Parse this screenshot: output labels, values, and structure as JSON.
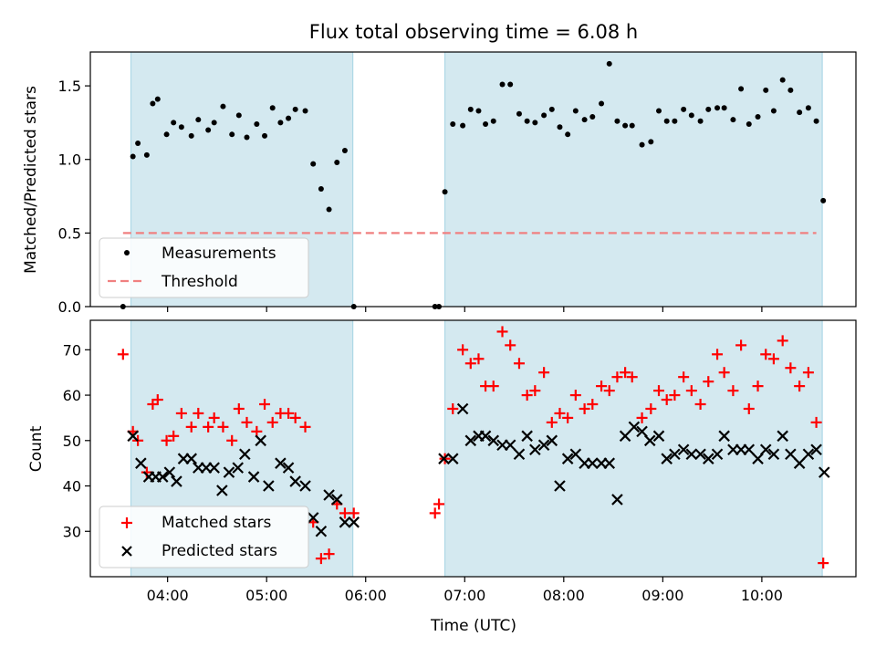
{
  "figure": {
    "title": "Flux total observing time = 6.08 h",
    "xlabel": "Time (UTC)",
    "x_ticks": [
      "04:00",
      "05:00",
      "06:00",
      "07:00",
      "08:00",
      "09:00",
      "10:00"
    ],
    "x_tick_values": [
      4.0,
      5.0,
      6.0,
      7.0,
      8.0,
      9.0,
      10.0
    ],
    "xlim": [
      3.22,
      10.95
    ]
  },
  "chart_data": [
    {
      "type": "scatter",
      "panel": "top",
      "ylabel": "Matched/Predicted stars",
      "ylim": [
        0.0,
        1.73
      ],
      "yticks": [
        0.0,
        0.5,
        1.0,
        1.5
      ],
      "ytick_labels": [
        "0.0",
        "0.5",
        "1.0",
        "1.5"
      ],
      "shaded_intervals": [
        [
          3.63,
          5.87
        ],
        [
          6.8,
          10.61
        ]
      ],
      "shade_color": "#d4e9f0",
      "legend": "lower-left",
      "threshold": {
        "name": "Threshold",
        "value": 0.5,
        "x_range": [
          3.55,
          10.55
        ],
        "color": "#f08080",
        "style": "dashed"
      },
      "series": [
        {
          "name": "Measurements",
          "marker": "dot",
          "color": "#000000",
          "x": [
            3.55,
            3.65,
            3.7,
            3.79,
            3.85,
            3.9,
            3.99,
            4.06,
            4.14,
            4.24,
            4.31,
            4.41,
            4.47,
            4.56,
            4.65,
            4.72,
            4.8,
            4.9,
            4.98,
            5.06,
            5.14,
            5.22,
            5.29,
            5.39,
            5.47,
            5.55,
            5.63,
            5.71,
            5.79,
            5.88,
            6.7,
            6.74,
            6.8,
            6.88,
            6.98,
            7.06,
            7.14,
            7.21,
            7.29,
            7.38,
            7.46,
            7.55,
            7.63,
            7.71,
            7.8,
            7.88,
            7.96,
            8.04,
            8.12,
            8.21,
            8.29,
            8.38,
            8.46,
            8.54,
            8.62,
            8.69,
            8.79,
            8.88,
            8.96,
            9.04,
            9.12,
            9.21,
            9.29,
            9.38,
            9.46,
            9.55,
            9.62,
            9.71,
            9.79,
            9.87,
            9.96,
            10.04,
            10.12,
            10.21,
            10.29,
            10.38,
            10.47,
            10.55,
            10.62
          ],
          "y": [
            0.0,
            1.02,
            1.11,
            1.03,
            1.38,
            1.41,
            1.17,
            1.25,
            1.22,
            1.16,
            1.27,
            1.2,
            1.25,
            1.36,
            1.17,
            1.3,
            1.15,
            1.24,
            1.16,
            1.35,
            1.25,
            1.28,
            1.34,
            1.33,
            0.97,
            0.8,
            0.66,
            0.98,
            1.06,
            0.0,
            0.0,
            0.0,
            0.78,
            1.24,
            1.23,
            1.34,
            1.33,
            1.24,
            1.26,
            1.51,
            1.51,
            1.31,
            1.26,
            1.25,
            1.3,
            1.34,
            1.22,
            1.17,
            1.33,
            1.27,
            1.29,
            1.38,
            1.65,
            1.26,
            1.23,
            1.23,
            1.1,
            1.12,
            1.33,
            1.26,
            1.26,
            1.34,
            1.3,
            1.26,
            1.34,
            1.35,
            1.35,
            1.27,
            1.48,
            1.24,
            1.29,
            1.47,
            1.33,
            1.54,
            1.47,
            1.32,
            1.35,
            1.26,
            0.72
          ]
        }
      ]
    },
    {
      "type": "scatter",
      "panel": "bottom",
      "ylabel": "Count",
      "ylim": [
        20.0,
        76.5
      ],
      "yticks": [
        30,
        40,
        50,
        60,
        70
      ],
      "ytick_labels": [
        "30",
        "40",
        "50",
        "60",
        "70"
      ],
      "shaded_intervals": [
        [
          3.63,
          5.87
        ],
        [
          6.8,
          10.61
        ]
      ],
      "shade_color": "#d4e9f0",
      "legend": "lower-left",
      "series": [
        {
          "name": "Matched stars",
          "marker": "plus",
          "color": "#ff0000",
          "x": [
            3.55,
            3.65,
            3.7,
            3.79,
            3.85,
            3.9,
            3.99,
            4.06,
            4.14,
            4.24,
            4.31,
            4.41,
            4.47,
            4.56,
            4.65,
            4.72,
            4.8,
            4.9,
            4.98,
            5.06,
            5.14,
            5.22,
            5.29,
            5.39,
            5.47,
            5.55,
            5.63,
            5.71,
            5.79,
            5.88,
            6.7,
            6.74,
            6.8,
            6.88,
            6.98,
            7.06,
            7.14,
            7.21,
            7.29,
            7.38,
            7.46,
            7.55,
            7.63,
            7.71,
            7.8,
            7.88,
            7.96,
            8.04,
            8.12,
            8.21,
            8.29,
            8.38,
            8.46,
            8.54,
            8.62,
            8.69,
            8.79,
            8.88,
            8.96,
            9.04,
            9.12,
            9.21,
            9.29,
            9.38,
            9.46,
            9.55,
            9.62,
            9.71,
            9.79,
            9.87,
            9.96,
            10.04,
            10.12,
            10.21,
            10.29,
            10.38,
            10.47,
            10.55,
            10.62
          ],
          "y": [
            69,
            52,
            50,
            43,
            58,
            59,
            50,
            51,
            56,
            53,
            56,
            53,
            55,
            53,
            50,
            57,
            54,
            52,
            58,
            54,
            56,
            56,
            55,
            53,
            32,
            24,
            25,
            36,
            34,
            34,
            34,
            36,
            46,
            57,
            70,
            67,
            68,
            62,
            62,
            74,
            71,
            67,
            60,
            61,
            65,
            54,
            56,
            55,
            60,
            57,
            58,
            62,
            61,
            64,
            65,
            64,
            55,
            57,
            61,
            59,
            60,
            64,
            61,
            58,
            63,
            69,
            65,
            61,
            71,
            57,
            62,
            69,
            68,
            72,
            66,
            62,
            65,
            54,
            23
          ]
        },
        {
          "name": "Predicted stars",
          "marker": "cross",
          "color": "#000000",
          "x": [
            3.65,
            3.73,
            3.81,
            3.88,
            3.95,
            4.02,
            4.09,
            4.16,
            4.24,
            4.31,
            4.39,
            4.47,
            4.55,
            4.62,
            4.71,
            4.78,
            4.87,
            4.94,
            5.02,
            5.14,
            5.22,
            5.29,
            5.39,
            5.47,
            5.55,
            5.63,
            5.71,
            5.79,
            5.88,
            6.79,
            6.88,
            6.98,
            7.06,
            7.14,
            7.21,
            7.29,
            7.38,
            7.46,
            7.55,
            7.63,
            7.71,
            7.8,
            7.88,
            7.96,
            8.04,
            8.12,
            8.21,
            8.29,
            8.38,
            8.46,
            8.54,
            8.62,
            8.71,
            8.79,
            8.87,
            8.96,
            9.04,
            9.12,
            9.21,
            9.29,
            9.38,
            9.46,
            9.55,
            9.62,
            9.71,
            9.79,
            9.87,
            9.96,
            10.04,
            10.12,
            10.21,
            10.29,
            10.38,
            10.47,
            10.55,
            10.63
          ],
          "y": [
            51,
            45,
            42,
            42,
            42,
            43,
            41,
            46,
            46,
            44,
            44,
            44,
            39,
            43,
            44,
            47,
            42,
            50,
            40,
            45,
            44,
            41,
            40,
            33,
            30,
            38,
            37,
            32,
            32,
            46,
            46,
            57,
            50,
            51,
            51,
            50,
            49,
            49,
            47,
            51,
            48,
            49,
            50,
            40,
            46,
            47,
            45,
            45,
            45,
            45,
            37,
            51,
            53,
            52,
            50,
            51,
            46,
            47,
            48,
            47,
            47,
            46,
            47,
            51,
            48,
            48,
            48,
            46,
            48,
            47,
            51,
            47,
            45,
            47,
            48,
            43
          ]
        }
      ]
    }
  ]
}
